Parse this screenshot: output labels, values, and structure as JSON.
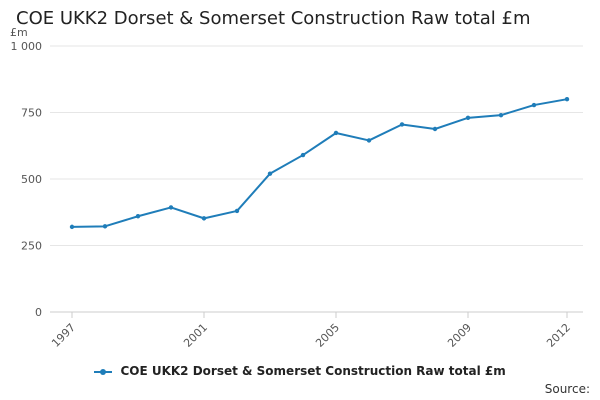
{
  "chart_data": {
    "type": "line",
    "title": "COE UKK2 Dorset & Somerset Construction Raw total £m",
    "ylabel": "£m",
    "xlabel": "",
    "x": [
      1997,
      1998,
      1999,
      2000,
      2001,
      2002,
      2003,
      2004,
      2005,
      2006,
      2007,
      2008,
      2009,
      2010,
      2011,
      2012
    ],
    "series": [
      {
        "name": "COE UKK2 Dorset & Somerset Construction Raw total £m",
        "values": [
          320,
          322,
          360,
          393,
          352,
          380,
          520,
          590,
          673,
          645,
          705,
          688,
          730,
          740,
          778,
          800
        ]
      }
    ],
    "xticks": [
      "1997",
      "2001",
      "2005",
      "2009",
      "2012"
    ],
    "yticks": [
      "0",
      "250",
      "500",
      "750",
      "1 000"
    ],
    "ylim": [
      0,
      1000
    ],
    "grid": true,
    "legend_position": "bottom",
    "color": "#1f7db9"
  },
  "footer": {
    "source_label": "Source:"
  }
}
